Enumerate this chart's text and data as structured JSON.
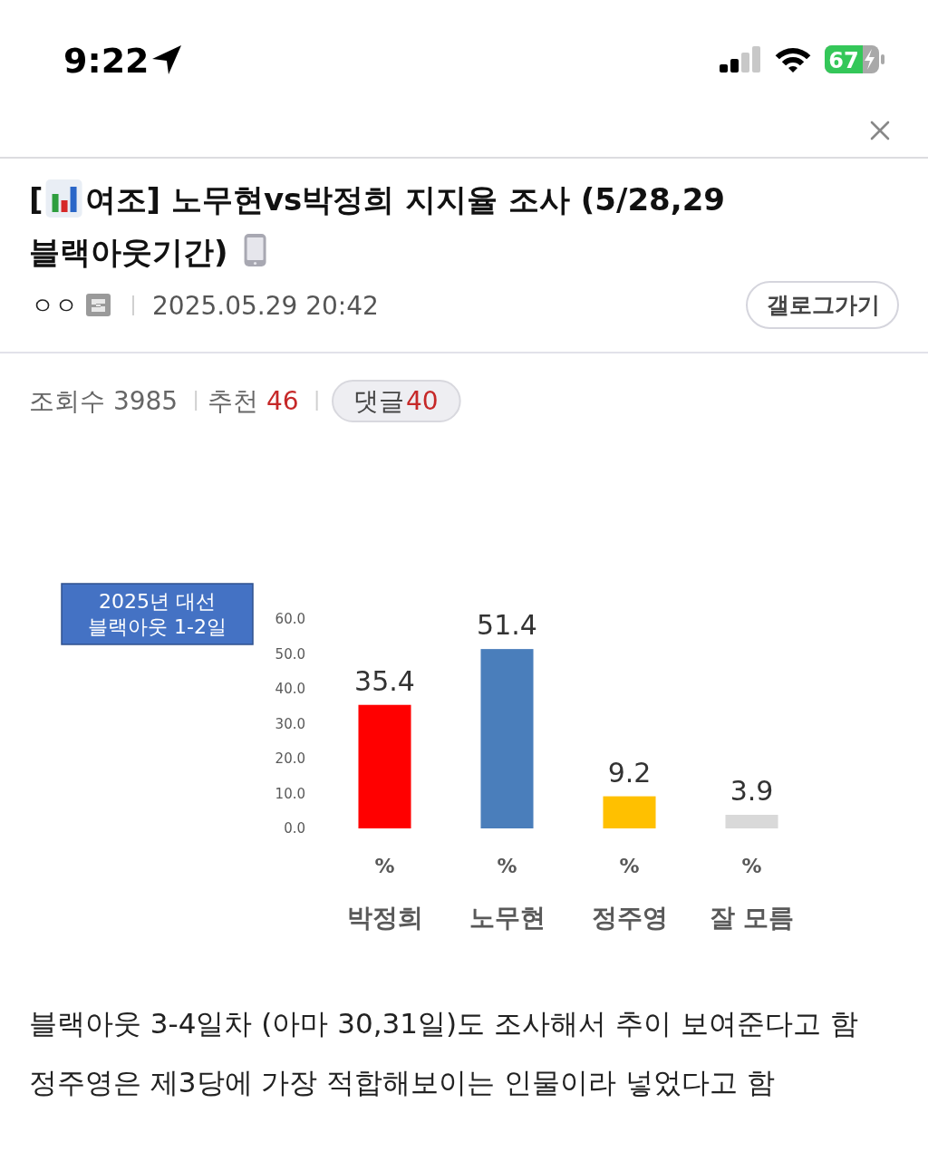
{
  "chart_data": {
    "type": "bar",
    "title": "[📊여조] 노무현vs박정희 지지율 조사 (5/28,29 블랙아웃기간)",
    "subtitle": "2025년 대선\n블랙아웃 1-2일",
    "categories": [
      "박정희",
      "노무현",
      "정주영",
      "잘 모름"
    ],
    "values": [
      35.4,
      51.4,
      9.2,
      3.9
    ],
    "colors": [
      "#ff0000",
      "#4a7ebb",
      "#ffc000",
      "#d9d9d9"
    ],
    "ylim": [
      0,
      60
    ],
    "yticks": [
      {
        "value": 0,
        "label": "0.0"
      },
      {
        "value": 10,
        "label": "10.0"
      },
      {
        "value": 20,
        "label": "20.0"
      },
      {
        "value": 30,
        "label": "30.0"
      },
      {
        "value": 40,
        "label": "40.0"
      },
      {
        "value": 50,
        "label": "50.0"
      },
      {
        "value": 60,
        "label": "60.0"
      }
    ],
    "data_labels": true,
    "annotations": [
      "9:22",
      "67",
      "ㅇㅇ",
      "2025.05.29 20:42",
      "갤로그가기",
      "조회수 3985",
      "추천",
      "46",
      "댓글",
      "40",
      "블랙아웃 3-4일차 (아마 30,31일)도 조사해서 추이 보여준다고 함",
      "정주영은 제3당에 가장 적합해보이는 인물이라 넣었다고 함",
      "%",
      "%",
      "%",
      "%"
    ]
  }
}
